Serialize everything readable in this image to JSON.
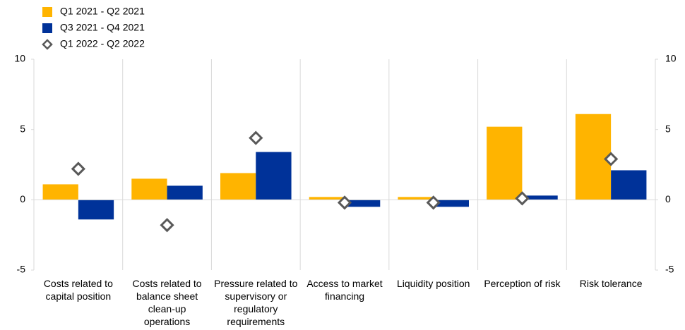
{
  "chart_data": {
    "type": "bar",
    "categories": [
      "Costs related to capital position",
      "Costs related to balance sheet clean-up operations",
      "Pressure related to supervisory or regulatory requirements",
      "Access to market financing",
      "Liquidity position",
      "Perception of risk",
      "Risk tolerance"
    ],
    "series": [
      {
        "name": "Q1 2021 - Q2 2021",
        "type": "bar",
        "color": "#ffb400",
        "values": [
          1.1,
          1.5,
          1.9,
          0.2,
          0.2,
          5.2,
          6.1
        ]
      },
      {
        "name": "Q3 2021 - Q4 2021",
        "type": "bar",
        "color": "#003299",
        "values": [
          -1.4,
          1.0,
          3.4,
          -0.5,
          -0.5,
          0.3,
          2.1
        ]
      },
      {
        "name": "Q1 2022 - Q2 2022",
        "type": "scatter",
        "marker": "diamond",
        "color": "#595959",
        "values": [
          2.2,
          -1.8,
          4.4,
          -0.2,
          -0.2,
          0.1,
          2.9
        ]
      }
    ],
    "ylim": [
      -5,
      10
    ],
    "yticks": [
      10,
      5,
      0,
      -5
    ],
    "y2lim": [
      -5,
      10
    ],
    "y2ticks": [
      10,
      5,
      0,
      -5
    ],
    "legend": "top-left",
    "category_separators": true
  }
}
